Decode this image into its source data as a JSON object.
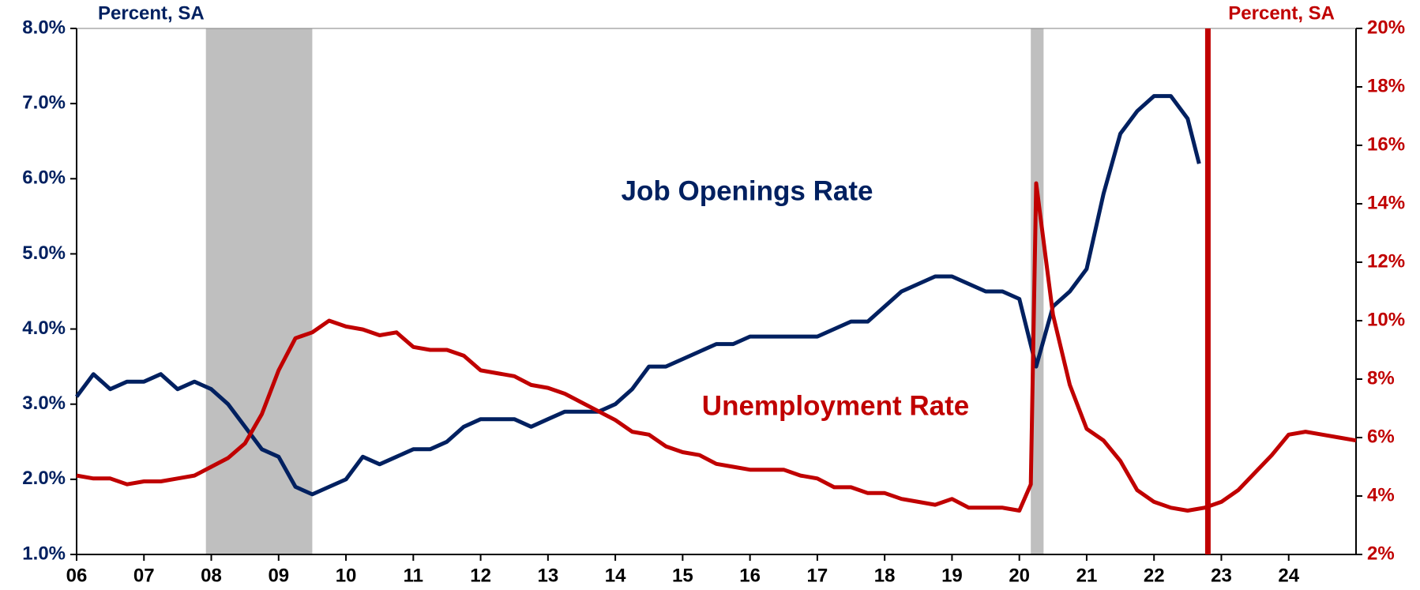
{
  "chart_data": {
    "type": "line",
    "y_axis_label": "Percent, SA",
    "y2_axis_label": "Percent, SA",
    "annotations": [
      "Job Openings Rate",
      "Unemployment Rate"
    ],
    "xlim": [
      6,
      25
    ],
    "xticks": [
      {
        "value": 6,
        "label": "06"
      },
      {
        "value": 7,
        "label": "07"
      },
      {
        "value": 8,
        "label": "08"
      },
      {
        "value": 9,
        "label": "09"
      },
      {
        "value": 10,
        "label": "10"
      },
      {
        "value": 11,
        "label": "11"
      },
      {
        "value": 12,
        "label": "12"
      },
      {
        "value": 13,
        "label": "13"
      },
      {
        "value": 14,
        "label": "14"
      },
      {
        "value": 15,
        "label": "15"
      },
      {
        "value": 16,
        "label": "16"
      },
      {
        "value": 17,
        "label": "17"
      },
      {
        "value": 18,
        "label": "18"
      },
      {
        "value": 19,
        "label": "19"
      },
      {
        "value": 20,
        "label": "20"
      },
      {
        "value": 21,
        "label": "21"
      },
      {
        "value": 22,
        "label": "22"
      },
      {
        "value": 23,
        "label": "23"
      },
      {
        "value": 24,
        "label": "24"
      }
    ],
    "ylim": [
      1,
      8
    ],
    "yticks": [
      {
        "value": 1,
        "label": "1.0%"
      },
      {
        "value": 2,
        "label": "2.0%"
      },
      {
        "value": 3,
        "label": "3.0%"
      },
      {
        "value": 4,
        "label": "4.0%"
      },
      {
        "value": 5,
        "label": "5.0%"
      },
      {
        "value": 6,
        "label": "6.0%"
      },
      {
        "value": 7,
        "label": "7.0%"
      },
      {
        "value": 8,
        "label": "8.0%"
      }
    ],
    "y2lim": [
      2,
      20
    ],
    "y2ticks": [
      {
        "value": 2,
        "label": "2%"
      },
      {
        "value": 4,
        "label": "4%"
      },
      {
        "value": 6,
        "label": "6%"
      },
      {
        "value": 8,
        "label": "8%"
      },
      {
        "value": 10,
        "label": "10%"
      },
      {
        "value": 12,
        "label": "12%"
      },
      {
        "value": 14,
        "label": "14%"
      },
      {
        "value": 16,
        "label": "16%"
      },
      {
        "value": 18,
        "label": "18%"
      },
      {
        "value": 20,
        "label": "20%"
      }
    ],
    "left_color": "#002060",
    "right_color": "#c00000",
    "recessions": [
      [
        7.92,
        9.5
      ],
      [
        20.17,
        20.36
      ]
    ],
    "recession_color": "#bfbfbf",
    "vline": 22.8,
    "series": [
      {
        "name": "Job Openings Rate",
        "color": "#002060",
        "axis": "y",
        "x": [
          6.0,
          6.25,
          6.5,
          6.75,
          7.0,
          7.25,
          7.5,
          7.75,
          8.0,
          8.25,
          8.5,
          8.75,
          9.0,
          9.25,
          9.5,
          9.75,
          10.0,
          10.25,
          10.5,
          10.75,
          11.0,
          11.25,
          11.5,
          11.75,
          12.0,
          12.25,
          12.5,
          12.75,
          13.0,
          13.25,
          13.5,
          13.75,
          14.0,
          14.25,
          14.5,
          14.75,
          15.0,
          15.25,
          15.5,
          15.75,
          16.0,
          16.25,
          16.5,
          16.75,
          17.0,
          17.25,
          17.5,
          17.75,
          18.0,
          18.25,
          18.5,
          18.75,
          19.0,
          19.25,
          19.5,
          19.75,
          20.0,
          20.25,
          20.5,
          20.75,
          21.0,
          21.25,
          21.5,
          21.75,
          22.0,
          22.25,
          22.5,
          22.67
        ],
        "values": [
          3.1,
          3.4,
          3.2,
          3.3,
          3.3,
          3.4,
          3.2,
          3.3,
          3.2,
          3.0,
          2.7,
          2.4,
          2.3,
          1.9,
          1.8,
          1.9,
          2.0,
          2.3,
          2.2,
          2.3,
          2.4,
          2.4,
          2.5,
          2.7,
          2.8,
          2.8,
          2.8,
          2.7,
          2.8,
          2.9,
          2.9,
          2.9,
          3.0,
          3.2,
          3.5,
          3.5,
          3.6,
          3.7,
          3.8,
          3.8,
          3.9,
          3.9,
          3.9,
          3.9,
          3.9,
          4.0,
          4.1,
          4.1,
          4.3,
          4.5,
          4.6,
          4.7,
          4.7,
          4.6,
          4.5,
          4.5,
          4.4,
          3.5,
          4.3,
          4.5,
          4.8,
          5.8,
          6.6,
          6.9,
          7.1,
          7.1,
          6.8,
          6.2
        ]
      },
      {
        "name": "Unemployment Rate",
        "color": "#c00000",
        "axis": "y2",
        "x": [
          6.0,
          6.25,
          6.5,
          6.75,
          7.0,
          7.25,
          7.5,
          7.75,
          8.0,
          8.25,
          8.5,
          8.75,
          9.0,
          9.25,
          9.5,
          9.75,
          10.0,
          10.25,
          10.5,
          10.75,
          11.0,
          11.25,
          11.5,
          11.75,
          12.0,
          12.25,
          12.5,
          12.75,
          13.0,
          13.25,
          13.5,
          13.75,
          14.0,
          14.25,
          14.5,
          14.75,
          15.0,
          15.25,
          15.5,
          15.75,
          16.0,
          16.25,
          16.5,
          16.75,
          17.0,
          17.25,
          17.5,
          17.75,
          18.0,
          18.25,
          18.5,
          18.75,
          19.0,
          19.25,
          19.5,
          19.75,
          20.0,
          20.17,
          20.25,
          20.5,
          20.75,
          21.0,
          21.25,
          21.5,
          21.75,
          22.0,
          22.25,
          22.5,
          22.75,
          23.0,
          23.25,
          23.5,
          23.75,
          24.0,
          24.25,
          24.5,
          24.75,
          25.0
        ],
        "values": [
          4.7,
          4.6,
          4.6,
          4.4,
          4.5,
          4.5,
          4.6,
          4.7,
          5.0,
          5.3,
          5.8,
          6.8,
          8.3,
          9.4,
          9.6,
          10.0,
          9.8,
          9.7,
          9.5,
          9.6,
          9.1,
          9.0,
          9.0,
          8.8,
          8.3,
          8.2,
          8.1,
          7.8,
          7.7,
          7.5,
          7.2,
          6.9,
          6.6,
          6.2,
          6.1,
          5.7,
          5.5,
          5.4,
          5.1,
          5.0,
          4.9,
          4.9,
          4.9,
          4.7,
          4.6,
          4.3,
          4.3,
          4.1,
          4.1,
          3.9,
          3.8,
          3.7,
          3.9,
          3.6,
          3.6,
          3.6,
          3.5,
          4.4,
          14.7,
          10.2,
          7.8,
          6.3,
          5.9,
          5.2,
          4.2,
          3.8,
          3.6,
          3.5,
          3.6,
          3.8,
          4.2,
          4.8,
          5.4,
          6.1,
          6.2,
          6.1,
          6.0,
          5.9
        ]
      }
    ]
  }
}
